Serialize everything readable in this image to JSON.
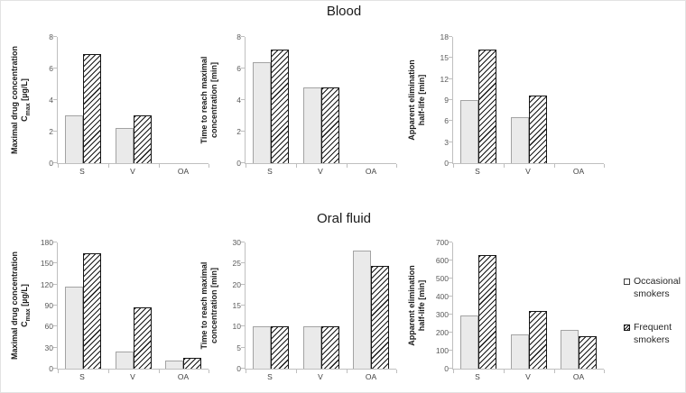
{
  "titles": {
    "top": "Blood",
    "bottom": "Oral fluid"
  },
  "legend": {
    "items": [
      {
        "swatch": "occasional",
        "label_lines": [
          "Occasional",
          "smokers"
        ]
      },
      {
        "swatch": "frequent",
        "label_lines": [
          "Frequent",
          "smokers"
        ]
      }
    ]
  },
  "colors": {
    "occasional_fill": "#eaeaea",
    "occasional_border": "#a3a3a3",
    "frequent_hatch": "#161616",
    "axis_line": "#bfbfbf",
    "tick_text": "#595959",
    "label_text": "#1a1a1a"
  },
  "chart_data": [
    {
      "type": "bar",
      "group": "Blood",
      "ylabel_lines": [
        "Maximal drug concentration",
        "C|max| [µg/L]"
      ],
      "categories": [
        "S",
        "V",
        "OA"
      ],
      "series": [
        {
          "name": "Occasional smokers",
          "values": [
            3.0,
            2.2,
            0
          ]
        },
        {
          "name": "Frequent smokers",
          "values": [
            6.9,
            3.0,
            0
          ]
        }
      ],
      "ylim": [
        0,
        8
      ],
      "yticks": [
        0,
        2,
        4,
        6,
        8
      ],
      "grid": false,
      "legend_position": "figure-right"
    },
    {
      "type": "bar",
      "group": "Blood",
      "ylabel_lines": [
        "Time to reach maximal",
        "concentration [min]"
      ],
      "categories": [
        "S",
        "V",
        "OA"
      ],
      "series": [
        {
          "name": "Occasional smokers",
          "values": [
            6.4,
            4.8,
            0
          ]
        },
        {
          "name": "Frequent smokers",
          "values": [
            7.2,
            4.8,
            0
          ]
        }
      ],
      "ylim": [
        0,
        8
      ],
      "yticks": [
        0,
        2,
        4,
        6,
        8
      ],
      "grid": false
    },
    {
      "type": "bar",
      "group": "Blood",
      "ylabel_lines": [
        "Apparent elimination",
        "half-life [min]"
      ],
      "categories": [
        "S",
        "V",
        "OA"
      ],
      "series": [
        {
          "name": "Occasional smokers",
          "values": [
            9.0,
            6.6,
            0
          ]
        },
        {
          "name": "Frequent smokers",
          "values": [
            16.2,
            9.7,
            0
          ]
        }
      ],
      "ylim": [
        0,
        18
      ],
      "yticks": [
        0,
        3,
        6,
        9,
        12,
        15,
        18
      ],
      "grid": false
    },
    {
      "type": "bar",
      "group": "Oral fluid",
      "ylabel_lines": [
        "Maximal drug concentration",
        "C|max| [µg/L]"
      ],
      "categories": [
        "S",
        "V",
        "OA"
      ],
      "series": [
        {
          "name": "Occasional smokers",
          "values": [
            117,
            24,
            11
          ]
        },
        {
          "name": "Frequent smokers",
          "values": [
            165,
            87,
            16
          ]
        }
      ],
      "ylim": [
        0,
        180
      ],
      "yticks": [
        0,
        30,
        60,
        90,
        120,
        150,
        180
      ],
      "grid": false
    },
    {
      "type": "bar",
      "group": "Oral fluid",
      "ylabel_lines": [
        "Time to reach maximal",
        "concentration [min]"
      ],
      "categories": [
        "S",
        "V",
        "OA"
      ],
      "series": [
        {
          "name": "Occasional smokers",
          "values": [
            10,
            10,
            28
          ]
        },
        {
          "name": "Frequent smokers",
          "values": [
            10,
            10,
            24.5
          ]
        }
      ],
      "ylim": [
        0,
        30
      ],
      "yticks": [
        0,
        5,
        10,
        15,
        20,
        25,
        30
      ],
      "grid": false
    },
    {
      "type": "bar",
      "group": "Oral fluid",
      "ylabel_lines": [
        "Apparent elimination",
        "half-life [min]"
      ],
      "categories": [
        "S",
        "V",
        "OA"
      ],
      "series": [
        {
          "name": "Occasional smokers",
          "values": [
            295,
            190,
            215
          ]
        },
        {
          "name": "Frequent smokers",
          "values": [
            630,
            320,
            180
          ]
        }
      ],
      "ylim": [
        0,
        700
      ],
      "yticks": [
        0,
        100,
        200,
        300,
        400,
        500,
        600,
        700
      ],
      "grid": false
    }
  ]
}
